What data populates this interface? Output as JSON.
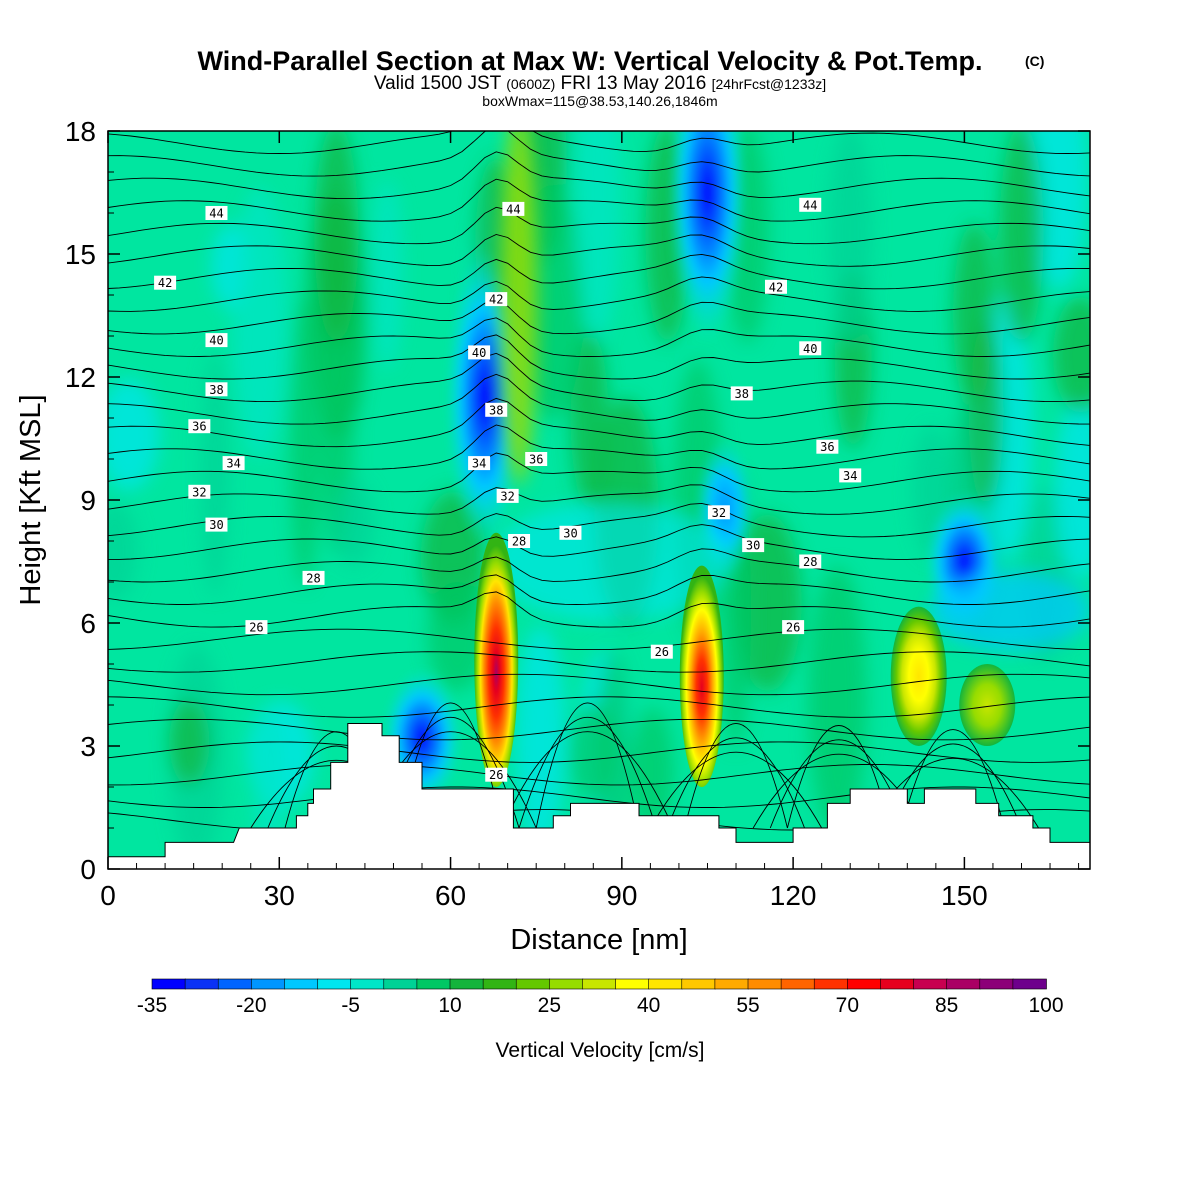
{
  "header": {
    "title": "Wind-Parallel Section at Max W: Vertical Velocity & Pot.Temp.",
    "title_mark": "(C)",
    "valid_prefix": "Valid 1500 JST",
    "valid_utc": "(0600Z)",
    "valid_date": "FRI 13 May 2016",
    "forecast": "[24hrFcst@1233z]",
    "boxline": "boxWmax=115@38.53,140.26,1846m"
  },
  "chart_data": {
    "type": "heatmap",
    "title": "Wind-Parallel Section at Max W: Vertical Velocity & Pot.Temp.",
    "xlabel": "Distance [nm]",
    "ylabel": "Height [Kft MSL]",
    "xlim": [
      0,
      172
    ],
    "ylim": [
      0,
      18
    ],
    "xticks": [
      0,
      30,
      60,
      90,
      120,
      150
    ],
    "yticks": [
      0,
      3,
      6,
      9,
      12,
      15,
      18
    ],
    "colorbar": {
      "label": "Vertical Velocity [cm/s]",
      "min": -35,
      "max": 100,
      "step": 5,
      "tick_labels": [
        "-35",
        "-20",
        "-5",
        "10",
        "25",
        "40",
        "55",
        "70",
        "85",
        "100"
      ],
      "tick_values": [
        -35,
        -20,
        -5,
        10,
        25,
        40,
        55,
        70,
        85,
        100
      ],
      "colors": [
        "#0000ff",
        "#0a32f5",
        "#0064ff",
        "#0096ff",
        "#00c8ff",
        "#00e6f0",
        "#00e6c8",
        "#00d296",
        "#00c864",
        "#14b43c",
        "#32b414",
        "#64c800",
        "#96dc00",
        "#c8e600",
        "#ffff00",
        "#ffe600",
        "#ffc800",
        "#ffaa00",
        "#ff8c00",
        "#ff6400",
        "#ff3200",
        "#ff0000",
        "#e6001e",
        "#c80050",
        "#aa0064",
        "#8c0078",
        "#6e008c"
      ]
    },
    "updraft_cores": [
      {
        "x": 68,
        "y_top": 8.2,
        "y_bottom": 2.0,
        "max_w": 85
      },
      {
        "x": 104,
        "y_top": 7.4,
        "y_bottom": 2.0,
        "max_w": 75
      },
      {
        "x": 142,
        "y_top": 6.4,
        "y_bottom": 3.0,
        "max_w": 38
      },
      {
        "x": 154,
        "y_top": 5.0,
        "y_bottom": 3.0,
        "max_w": 25
      }
    ],
    "downdraft_zones": [
      {
        "x": 55,
        "y": 3.2,
        "min_w": -35
      },
      {
        "x": 66,
        "y": 11.5,
        "min_w": -25
      },
      {
        "x": 105,
        "y": 16.5,
        "min_w": -25
      },
      {
        "x": 150,
        "y": 7.5,
        "min_w": -25
      },
      {
        "x": 108,
        "y": 8.8,
        "min_w": -15
      }
    ],
    "terrain_profile": [
      [
        0,
        0.3
      ],
      [
        10,
        0.3
      ],
      [
        10,
        0.65
      ],
      [
        22,
        0.65
      ],
      [
        22,
        0.65
      ],
      [
        23,
        1.0
      ],
      [
        33,
        1.0
      ],
      [
        33,
        1.3
      ],
      [
        35,
        1.3
      ],
      [
        35,
        1.6
      ],
      [
        36,
        1.6
      ],
      [
        36,
        1.95
      ],
      [
        39,
        1.95
      ],
      [
        39,
        2.6
      ],
      [
        42,
        2.6
      ],
      [
        42,
        3.55
      ],
      [
        48,
        3.55
      ],
      [
        48,
        3.25
      ],
      [
        51,
        3.25
      ],
      [
        51,
        2.6
      ],
      [
        55,
        2.6
      ],
      [
        55,
        1.95
      ],
      [
        71,
        1.95
      ],
      [
        71,
        1.0
      ],
      [
        78,
        1.0
      ],
      [
        78,
        1.3
      ],
      [
        81,
        1.3
      ],
      [
        81,
        1.6
      ],
      [
        93,
        1.6
      ],
      [
        93,
        1.3
      ],
      [
        103,
        1.3
      ],
      [
        103,
        1.3
      ],
      [
        107,
        1.3
      ],
      [
        107,
        1.0
      ],
      [
        110,
        1.0
      ],
      [
        110,
        0.65
      ],
      [
        120,
        0.65
      ],
      [
        120,
        1.0
      ],
      [
        126,
        1.0
      ],
      [
        126,
        1.6
      ],
      [
        130,
        1.6
      ],
      [
        130,
        1.95
      ],
      [
        140,
        1.95
      ],
      [
        140,
        1.6
      ],
      [
        143,
        1.6
      ],
      [
        143,
        1.95
      ],
      [
        152,
        1.95
      ],
      [
        152,
        1.6
      ],
      [
        156,
        1.6
      ],
      [
        156,
        1.3
      ],
      [
        162,
        1.3
      ],
      [
        162,
        1.0
      ],
      [
        165,
        1.0
      ],
      [
        165,
        0.65
      ],
      [
        172,
        0.65
      ]
    ],
    "isentrope_labels": [
      {
        "text": "44",
        "x": 19,
        "y": 16.0
      },
      {
        "text": "44",
        "x": 71,
        "y": 16.1
      },
      {
        "text": "44",
        "x": 123,
        "y": 16.2
      },
      {
        "text": "42",
        "x": 10,
        "y": 14.3
      },
      {
        "text": "42",
        "x": 68,
        "y": 13.9
      },
      {
        "text": "42",
        "x": 117,
        "y": 14.2
      },
      {
        "text": "40",
        "x": 19,
        "y": 12.9
      },
      {
        "text": "40",
        "x": 65,
        "y": 12.6
      },
      {
        "text": "40",
        "x": 123,
        "y": 12.7
      },
      {
        "text": "38",
        "x": 19,
        "y": 11.7
      },
      {
        "text": "38",
        "x": 68,
        "y": 11.2
      },
      {
        "text": "38",
        "x": 111,
        "y": 11.6
      },
      {
        "text": "36",
        "x": 16,
        "y": 10.8
      },
      {
        "text": "36",
        "x": 75,
        "y": 10.0
      },
      {
        "text": "36",
        "x": 126,
        "y": 10.3
      },
      {
        "text": "34",
        "x": 22,
        "y": 9.9
      },
      {
        "text": "34",
        "x": 65,
        "y": 9.9
      },
      {
        "text": "34",
        "x": 130,
        "y": 9.6
      },
      {
        "text": "32",
        "x": 16,
        "y": 9.2
      },
      {
        "text": "32",
        "x": 70,
        "y": 9.1
      },
      {
        "text": "32",
        "x": 107,
        "y": 8.7
      },
      {
        "text": "30",
        "x": 19,
        "y": 8.4
      },
      {
        "text": "30",
        "x": 81,
        "y": 8.2
      },
      {
        "text": "30",
        "x": 113,
        "y": 7.9
      },
      {
        "text": "28",
        "x": 72,
        "y": 8.0
      },
      {
        "text": "28",
        "x": 123,
        "y": 7.5
      },
      {
        "text": "28",
        "x": 36,
        "y": 7.1
      },
      {
        "text": "26",
        "x": 26,
        "y": 5.9
      },
      {
        "text": "26",
        "x": 97,
        "y": 5.3
      },
      {
        "text": "26",
        "x": 120,
        "y": 5.9
      },
      {
        "text": "26",
        "x": 68,
        "y": 2.3
      }
    ]
  }
}
